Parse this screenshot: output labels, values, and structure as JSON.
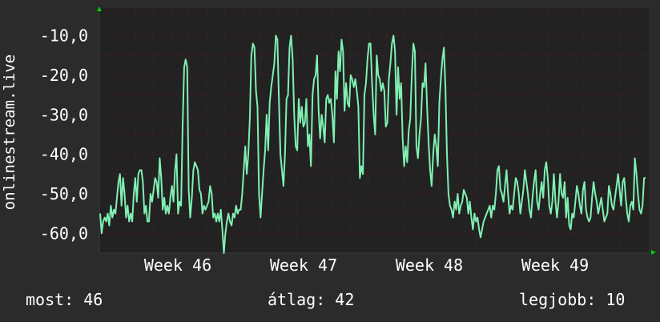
{
  "colors": {
    "background": "#2b2b2b",
    "plot_background": "#222222",
    "grid": "#5a1e1e",
    "axis": "#3a3a3a",
    "line": "#7ff0b2",
    "axis_arrow": "#00cc00",
    "text": "#ffffff"
  },
  "chart_data": {
    "type": "line",
    "ylabel": "onlinestream.live",
    "ylim": [
      -65,
      -3
    ],
    "y_ticks": [
      -10,
      -20,
      -30,
      -40,
      -50,
      -60
    ],
    "y_tick_labels": [
      "-10,0",
      "-20,0",
      "-30,0",
      "-40,0",
      "-50,0",
      "-60,0"
    ],
    "x_tick_labels": [
      "Week 46",
      "Week 47",
      "Week 48",
      "Week 49"
    ],
    "grid": true,
    "series": [
      {
        "values": [
          -55,
          -60,
          -57,
          -56,
          -57,
          -55,
          -58,
          -53,
          -56,
          -54,
          -55,
          -51,
          -47,
          -45,
          -53,
          -46,
          -50,
          -56,
          -53,
          -57,
          -55,
          -57,
          -50,
          -46,
          -52,
          -45,
          -44,
          -44,
          -47,
          -55,
          -53,
          -57,
          -57,
          -50,
          -52,
          -49,
          -46,
          -47,
          -51,
          -41,
          -46,
          -54,
          -51,
          -55,
          -53,
          -55,
          -51,
          -48,
          -52,
          -44,
          -40,
          -55,
          -52,
          -53,
          -33,
          -18,
          -16,
          -18,
          -49,
          -56,
          -51,
          -44,
          -42,
          -43,
          -44,
          -49,
          -50,
          -55,
          -53,
          -54,
          -53,
          -52,
          -48,
          -50,
          -56,
          -55,
          -57,
          -55,
          -57,
          -54,
          -59,
          -65,
          -60,
          -57,
          -55,
          -57,
          -58,
          -55,
          -56,
          -53,
          -55,
          -54,
          -54,
          -50,
          -44,
          -38,
          -45,
          -40,
          -31,
          -15,
          -12,
          -13,
          -24,
          -28,
          -50,
          -56,
          -50,
          -44,
          -39,
          -30,
          -39,
          -27,
          -23,
          -20,
          -17,
          -10,
          -11,
          -26,
          -40,
          -44,
          -48,
          -40,
          -26,
          -25,
          -13,
          -10,
          -16,
          -30,
          -38,
          -39,
          -26,
          -32,
          -28,
          -33,
          -32,
          -26,
          -38,
          -35,
          -43,
          -25,
          -21,
          -20,
          -15,
          -29,
          -36,
          -30,
          -33,
          -37,
          -26,
          -25,
          -27,
          -26,
          -30,
          -37,
          -19,
          -26,
          -14,
          -19,
          -11,
          -14,
          -29,
          -22,
          -27,
          -28,
          -20,
          -21,
          -23,
          -21,
          -24,
          -28,
          -46,
          -43,
          -45,
          -25,
          -22,
          -16,
          -12,
          -12,
          -22,
          -30,
          -35,
          -15,
          -20,
          -21,
          -24,
          -22,
          -24,
          -33,
          -32,
          -21,
          -17,
          -12,
          -10,
          -14,
          -30,
          -18,
          -26,
          -22,
          -36,
          -43,
          -38,
          -42,
          -34,
          -31,
          -20,
          -12,
          -14,
          -38,
          -41,
          -35,
          -31,
          -22,
          -23,
          -17,
          -28,
          -37,
          -44,
          -48,
          -40,
          -35,
          -38,
          -43,
          -27,
          -21,
          -16,
          -13,
          -23,
          -40,
          -50,
          -53,
          -54,
          -56,
          -52,
          -54,
          -50,
          -55,
          -53,
          -52,
          -49,
          -50,
          -51,
          -55,
          -52,
          -56,
          -59,
          -55,
          -57,
          -56,
          -59,
          -61,
          -59,
          -57,
          -56,
          -55,
          -54,
          -53,
          -56,
          -53,
          -54,
          -50,
          -44,
          -43,
          -49,
          -50,
          -52,
          -48,
          -44,
          -50,
          -55,
          -53,
          -54,
          -50,
          -46,
          -47,
          -50,
          -55,
          -52,
          -49,
          -44,
          -47,
          -50,
          -54,
          -56,
          -51,
          -47,
          -44,
          -52,
          -54,
          -50,
          -47,
          -51,
          -44,
          -42,
          -46,
          -53,
          -55,
          -52,
          -45,
          -52,
          -56,
          -52,
          -45,
          -50,
          -51,
          -47,
          -56,
          -51,
          -58,
          -59,
          -55,
          -56,
          -52,
          -48,
          -50,
          -53,
          -55,
          -49,
          -47,
          -54,
          -56,
          -57,
          -56,
          -51,
          -47,
          -50,
          -52,
          -55,
          -53,
          -51,
          -54,
          -57,
          -56,
          -55,
          -48,
          -50,
          -53,
          -54,
          -51,
          -48,
          -45,
          -49,
          -53,
          -47,
          -46,
          -51,
          -55,
          -57,
          -53,
          -52,
          -54,
          -41,
          -45,
          -50,
          -54,
          -55,
          -53,
          -46,
          -46
        ]
      }
    ]
  },
  "stats": {
    "current": "most: 46",
    "average": "átlag: 42",
    "max": "legjobb: 10"
  }
}
